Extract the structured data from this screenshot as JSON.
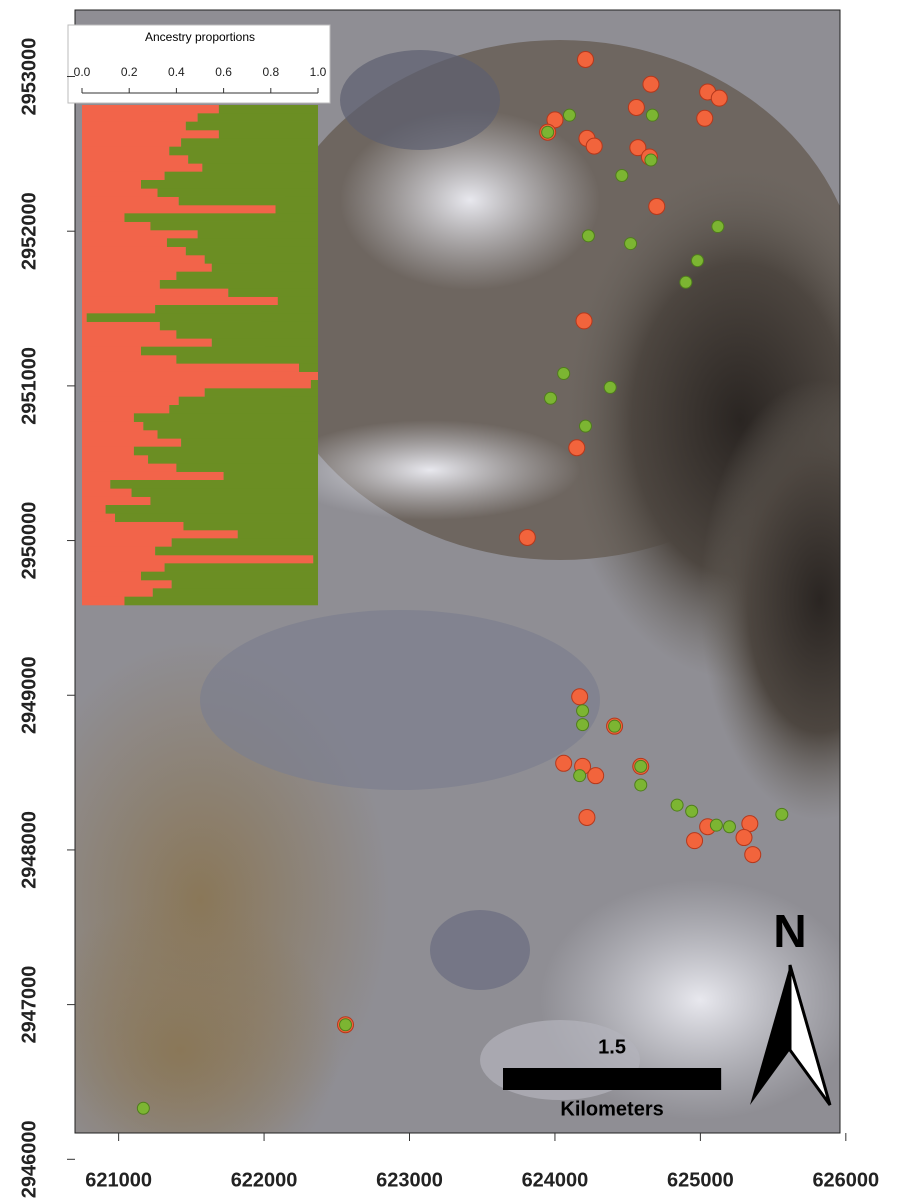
{
  "chart_data": [
    {
      "type": "scatter",
      "xlim": [
        620700,
        625960
      ],
      "ylim": [
        2946170,
        2953430
      ],
      "xticks": [
        621000,
        622000,
        623000,
        624000,
        625000,
        626000
      ],
      "yticks": [
        2946000,
        2947000,
        2948000,
        2949000,
        2950000,
        2951000,
        2952000,
        2953000
      ],
      "series": [
        {
          "color": "#f2643c",
          "x": [
            624210,
            624660,
            625050,
            625130,
            624560,
            624000,
            623950,
            624220,
            624270,
            624570,
            624650,
            625030,
            624700,
            624200,
            624150,
            623810,
            624170,
            624060,
            624190,
            624280,
            624410,
            624590,
            624220,
            624960,
            625050,
            625340,
            625300,
            625360,
            622560
          ],
          "y": [
            2953110,
            2952950,
            2952900,
            2952860,
            2952800,
            2952720,
            2952640,
            2952600,
            2952550,
            2952540,
            2952480,
            2952730,
            2952160,
            2951420,
            2950600,
            2950020,
            2948990,
            2948560,
            2948540,
            2948480,
            2948800,
            2948540,
            2948210,
            2948060,
            2948150,
            2948170,
            2948080,
            2947970,
            2946870
          ]
        },
        {
          "color": "#7cb532",
          "x": [
            624100,
            624670,
            623950,
            624660,
            624460,
            625120,
            624230,
            624520,
            624980,
            624900,
            624060,
            623970,
            624380,
            624210,
            624190,
            624190,
            624170,
            624590,
            624410,
            624590,
            624840,
            624940,
            625110,
            625200,
            625560,
            621170,
            622560
          ],
          "y": [
            2952750,
            2952750,
            2952640,
            2952460,
            2952360,
            2952030,
            2951970,
            2951920,
            2951810,
            2951670,
            2951080,
            2950920,
            2950990,
            2950740,
            2948900,
            2948810,
            2948480,
            2948420,
            2948800,
            2948540,
            2948290,
            2948250,
            2948160,
            2948150,
            2948230,
            2946330,
            2946870
          ]
        }
      ],
      "scale_bar": {
        "length": 1.5,
        "unit": "Kilometers"
      },
      "north_label": "N"
    },
    {
      "type": "bar",
      "orientation": "horizontal",
      "stacked": true,
      "title": "Ancestry proportions",
      "xlim": [
        0,
        1
      ],
      "xticks": [
        {
          "value": 0,
          "label": "0.0"
        },
        0.2,
        0.4,
        0.6,
        0.8,
        {
          "value": 1,
          "label": "1.0"
        }
      ],
      "series": [
        {
          "color": "#f2644a",
          "values": [
            0.58,
            0.49,
            0.44,
            0.58,
            0.42,
            0.37,
            0.45,
            0.51,
            0.35,
            0.25,
            0.32,
            0.41,
            0.82,
            0.18,
            0.29,
            0.49,
            0.36,
            0.44,
            0.52,
            0.55,
            0.4,
            0.33,
            0.62,
            0.83,
            0.31,
            0.02,
            0.33,
            0.4,
            0.55,
            0.25,
            0.4,
            0.92,
            1.0,
            0.97,
            0.52,
            0.41,
            0.37,
            0.22,
            0.26,
            0.32,
            0.42,
            0.22,
            0.28,
            0.4,
            0.6,
            0.12,
            0.21,
            0.29,
            0.1,
            0.14,
            0.43,
            0.66,
            0.38,
            0.31,
            0.98,
            0.35,
            0.25,
            0.38,
            0.3,
            0.18
          ]
        },
        {
          "color": "#6b8e23",
          "values": [
            0.42,
            0.51,
            0.56,
            0.42,
            0.58,
            0.63,
            0.55,
            0.49,
            0.65,
            0.75,
            0.68,
            0.59,
            0.18,
            0.82,
            0.71,
            0.51,
            0.64,
            0.56,
            0.48,
            0.45,
            0.6,
            0.67,
            0.38,
            0.17,
            0.69,
            0.98,
            0.67,
            0.6,
            0.45,
            0.75,
            0.6,
            0.08,
            0.0,
            0.03,
            0.48,
            0.59,
            0.63,
            0.78,
            0.74,
            0.68,
            0.58,
            0.78,
            0.72,
            0.6,
            0.4,
            0.88,
            0.79,
            0.71,
            0.9,
            0.86,
            0.57,
            0.34,
            0.62,
            0.69,
            0.02,
            0.65,
            0.75,
            0.62,
            0.7,
            0.82
          ]
        }
      ]
    }
  ]
}
